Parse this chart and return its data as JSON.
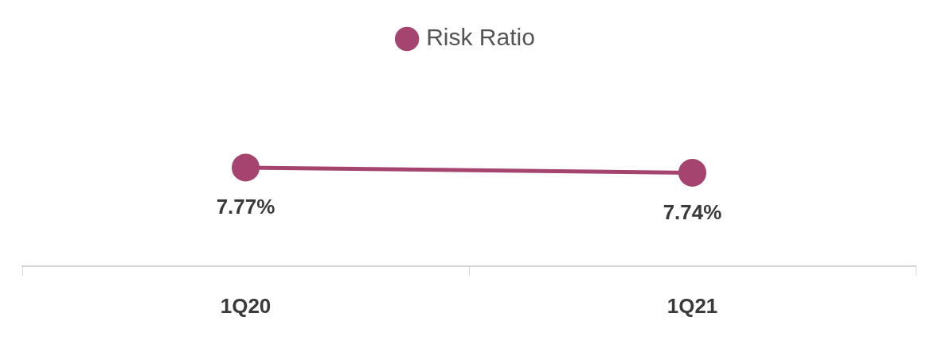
{
  "chart_data": {
    "type": "line",
    "categories": [
      "1Q20",
      "1Q21"
    ],
    "series": [
      {
        "name": "Risk Ratio",
        "color": "#a5446f",
        "values": [
          7.77,
          7.74
        ],
        "value_labels": [
          "7.77%",
          "7.74%"
        ]
      }
    ],
    "tick_labels": "x",
    "legend": "top",
    "marker": "circle",
    "line_style": "solid",
    "grid": false
  }
}
